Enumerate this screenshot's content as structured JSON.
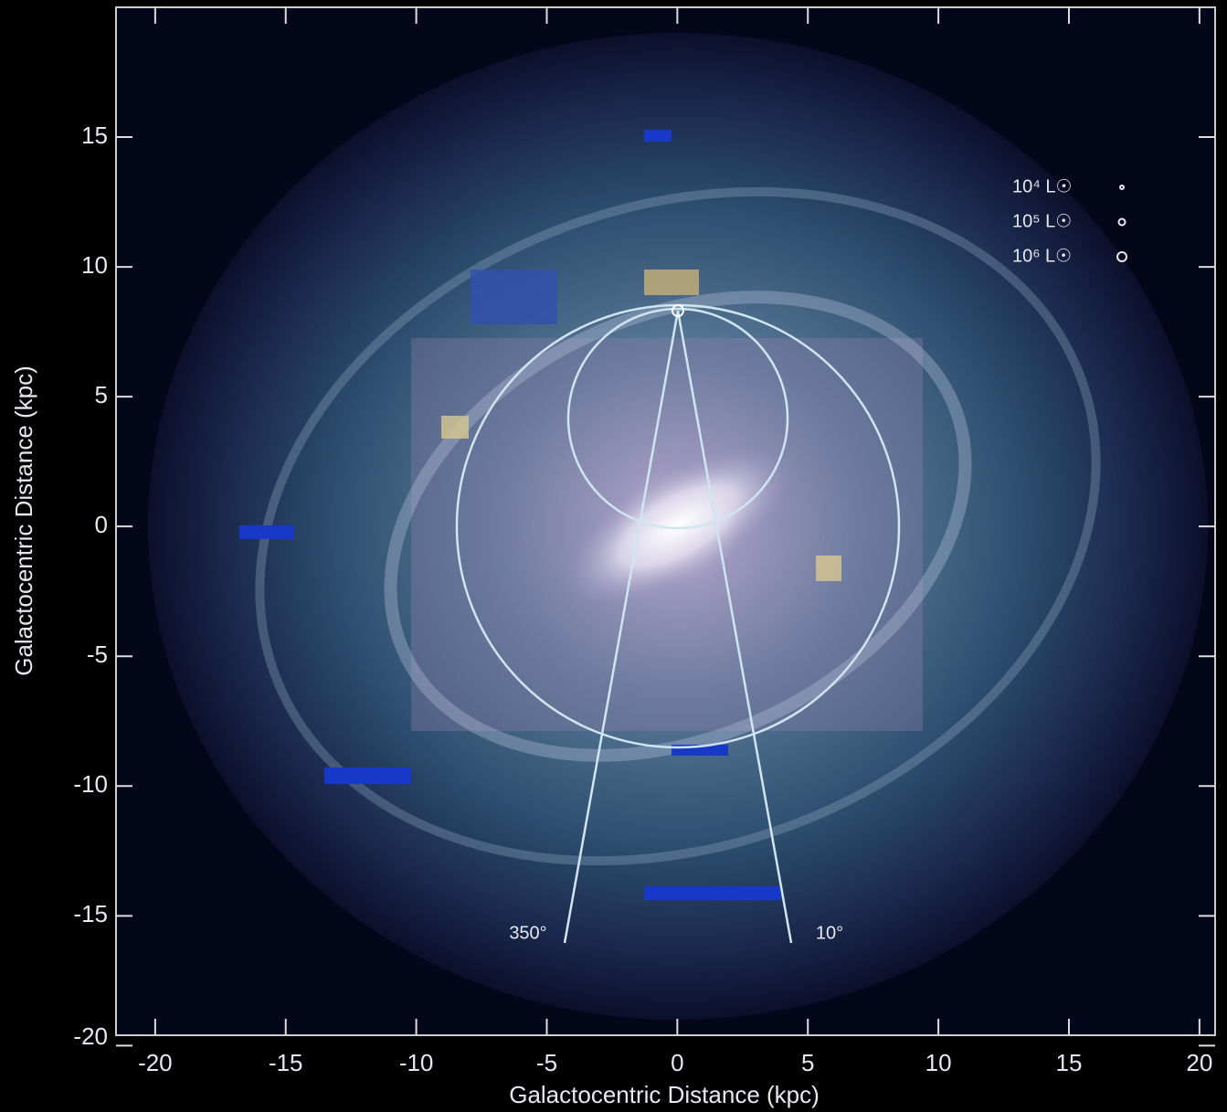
{
  "chart_data": {
    "type": "image",
    "xlabel": "Galactocentric Distance (kpc)",
    "ylabel": "Galactocentric Distance (kpc)",
    "xlim": [
      -21.5,
      20.6
    ],
    "ylim": [
      -19.6,
      20
    ],
    "xticks": [
      -20,
      -15,
      -10,
      -5,
      0,
      5,
      10,
      15,
      20
    ],
    "yticks": [
      -20,
      -15,
      -10,
      -5,
      0,
      5,
      10,
      15
    ],
    "legend": [
      "10⁴ L☉",
      "10⁵ L☉",
      "10⁶ L☉"
    ],
    "annotations": [
      "350°",
      "10°"
    ]
  }
}
